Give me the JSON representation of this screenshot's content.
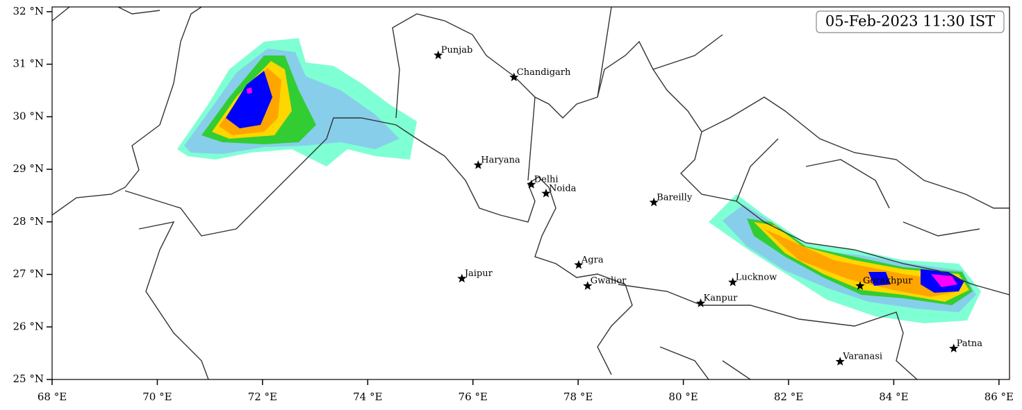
{
  "title_box": "05-Feb-2023 11:30 IST",
  "map": {
    "xlim": [
      68,
      86.2
    ],
    "ylim": [
      25,
      32.09
    ],
    "xticks": [
      {
        "value": 68,
        "label": "68 °E"
      },
      {
        "value": 70,
        "label": "70 °E"
      },
      {
        "value": 72,
        "label": "72 °E"
      },
      {
        "value": 74,
        "label": "74 °E"
      },
      {
        "value": 76,
        "label": "76 °E"
      },
      {
        "value": 78,
        "label": "78 °E"
      },
      {
        "value": 80,
        "label": "80 °E"
      },
      {
        "value": 82,
        "label": "82 °E"
      },
      {
        "value": 84,
        "label": "84 °E"
      },
      {
        "value": 86,
        "label": "86 °E"
      }
    ],
    "yticks": [
      {
        "value": 25,
        "label": "25 °N"
      },
      {
        "value": 26,
        "label": "26 °N"
      },
      {
        "value": 27,
        "label": "27 °N"
      },
      {
        "value": 28,
        "label": "28 °N"
      },
      {
        "value": 29,
        "label": "29 °N"
      },
      {
        "value": 30,
        "label": "30 °N"
      },
      {
        "value": 31,
        "label": "31 °N"
      },
      {
        "value": 32,
        "label": "32 °N"
      }
    ]
  },
  "cities": [
    {
      "name": "Punjab",
      "lon": 75.34,
      "lat": 31.17
    },
    {
      "name": "Chandigarh",
      "lon": 76.78,
      "lat": 30.75
    },
    {
      "name": "Haryana",
      "lon": 76.1,
      "lat": 29.08
    },
    {
      "name": "Delhi",
      "lon": 77.11,
      "lat": 28.71
    },
    {
      "name": "Noida",
      "lon": 77.39,
      "lat": 28.54
    },
    {
      "name": "Bareilly",
      "lon": 79.44,
      "lat": 28.37
    },
    {
      "name": "Agra",
      "lon": 78.01,
      "lat": 27.18
    },
    {
      "name": "Gwalior",
      "lon": 78.18,
      "lat": 26.78
    },
    {
      "name": "Jaipur",
      "lon": 75.79,
      "lat": 26.92
    },
    {
      "name": "Lucknow",
      "lon": 80.94,
      "lat": 26.85
    },
    {
      "name": "Kanpur",
      "lon": 80.33,
      "lat": 26.45
    },
    {
      "name": "Gorakhpur",
      "lon": 83.36,
      "lat": 26.78
    },
    {
      "name": "Varanasi",
      "lon": 82.98,
      "lat": 25.34
    },
    {
      "name": "Patna",
      "lon": 85.14,
      "lat": 25.59
    }
  ]
}
